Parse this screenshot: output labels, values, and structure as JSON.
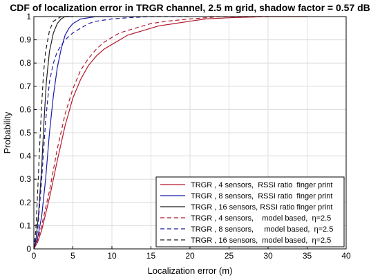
{
  "chart_data": {
    "type": "line",
    "title": "CDF of localization error in TRGR channel, 2.5 m grid, shadow factor =  0.57 dB",
    "xlabel": "Localization error (m)",
    "ylabel": "Probability",
    "xlim": [
      0,
      40
    ],
    "ylim": [
      0,
      1
    ],
    "xticks": [
      0,
      5,
      10,
      15,
      20,
      25,
      30,
      35,
      40
    ],
    "yticks": [
      0,
      0.1,
      0.2,
      0.3,
      0.4,
      0.5,
      0.6,
      0.7,
      0.8,
      0.9,
      1
    ],
    "grid": true,
    "legend_position": "bottom-right",
    "series": [
      {
        "name": "TRGR , 4 sensors,  RSSI ratio  finger print",
        "color": "#b2182b",
        "dash": "solid",
        "points": [
          [
            0,
            0
          ],
          [
            0.5,
            0.03
          ],
          [
            1,
            0.08
          ],
          [
            2,
            0.22
          ],
          [
            3,
            0.38
          ],
          [
            4,
            0.53
          ],
          [
            5,
            0.65
          ],
          [
            6,
            0.73
          ],
          [
            7,
            0.79
          ],
          [
            8,
            0.83
          ],
          [
            9,
            0.86
          ],
          [
            10,
            0.88
          ],
          [
            11,
            0.9
          ],
          [
            12,
            0.92
          ],
          [
            13,
            0.93
          ],
          [
            14,
            0.94
          ],
          [
            15,
            0.95
          ],
          [
            16,
            0.96
          ],
          [
            18,
            0.97
          ],
          [
            20,
            0.98
          ],
          [
            22,
            0.99
          ],
          [
            25,
            0.995
          ],
          [
            30,
            1
          ],
          [
            35,
            1
          ]
        ]
      },
      {
        "name": "TRGR , 8 sensors,  RSSI ratio  finger print",
        "color": "#1a1aa6",
        "dash": "solid",
        "points": [
          [
            0,
            0
          ],
          [
            0.5,
            0.05
          ],
          [
            1,
            0.14
          ],
          [
            1.5,
            0.3
          ],
          [
            2,
            0.5
          ],
          [
            2.5,
            0.66
          ],
          [
            3,
            0.78
          ],
          [
            3.5,
            0.86
          ],
          [
            4,
            0.92
          ],
          [
            4.5,
            0.95
          ],
          [
            5,
            0.97
          ],
          [
            6,
            0.99
          ],
          [
            7,
            0.995
          ],
          [
            8,
            1
          ],
          [
            10,
            1
          ]
        ]
      },
      {
        "name": "TRGR , 16 sensors, RSSI ratio finger print",
        "color": "#1f1f1f",
        "dash": "solid",
        "points": [
          [
            0,
            0
          ],
          [
            0.3,
            0.05
          ],
          [
            0.6,
            0.15
          ],
          [
            1,
            0.35
          ],
          [
            1.3,
            0.55
          ],
          [
            1.6,
            0.72
          ],
          [
            2,
            0.85
          ],
          [
            2.5,
            0.93
          ],
          [
            3,
            0.97
          ],
          [
            3.5,
            0.99
          ],
          [
            4,
            1
          ],
          [
            5,
            1
          ]
        ]
      },
      {
        "name": "TRGR , 4 sensors,    model based,  η=2.5",
        "color": "#b2182b",
        "dash": "dashed",
        "points": [
          [
            0,
            0
          ],
          [
            0.5,
            0.04
          ],
          [
            1,
            0.1
          ],
          [
            2,
            0.25
          ],
          [
            3,
            0.43
          ],
          [
            4,
            0.58
          ],
          [
            5,
            0.69
          ],
          [
            6,
            0.77
          ],
          [
            7,
            0.82
          ],
          [
            8,
            0.86
          ],
          [
            9,
            0.89
          ],
          [
            10,
            0.91
          ],
          [
            11,
            0.93
          ],
          [
            12,
            0.94
          ],
          [
            13,
            0.95
          ],
          [
            14,
            0.96
          ],
          [
            15,
            0.97
          ],
          [
            17,
            0.98
          ],
          [
            20,
            0.99
          ],
          [
            22,
            0.995
          ],
          [
            24,
            1
          ],
          [
            30,
            1
          ]
        ]
      },
      {
        "name": "TRGR , 8 sensors,     model based,  η=2.5",
        "color": "#1a1aa6",
        "dash": "dashed",
        "points": [
          [
            0,
            0
          ],
          [
            0.5,
            0.08
          ],
          [
            1,
            0.3
          ],
          [
            1.5,
            0.55
          ],
          [
            2,
            0.72
          ],
          [
            2.5,
            0.8
          ],
          [
            3,
            0.85
          ],
          [
            4,
            0.9
          ],
          [
            5,
            0.93
          ],
          [
            6,
            0.95
          ],
          [
            7,
            0.97
          ],
          [
            8,
            0.98
          ],
          [
            10,
            0.99
          ],
          [
            12,
            0.995
          ],
          [
            15,
            1
          ],
          [
            20,
            1
          ]
        ]
      },
      {
        "name": "TRGR , 16 sensors,  model based,  η=2.5",
        "color": "#1f1f1f",
        "dash": "dashed",
        "points": [
          [
            0,
            0
          ],
          [
            0.25,
            0.08
          ],
          [
            0.5,
            0.25
          ],
          [
            0.75,
            0.45
          ],
          [
            1,
            0.62
          ],
          [
            1.25,
            0.76
          ],
          [
            1.5,
            0.85
          ],
          [
            2,
            0.94
          ],
          [
            2.5,
            0.98
          ],
          [
            3,
            0.99
          ],
          [
            3.5,
            1
          ],
          [
            5,
            1
          ]
        ]
      }
    ]
  }
}
